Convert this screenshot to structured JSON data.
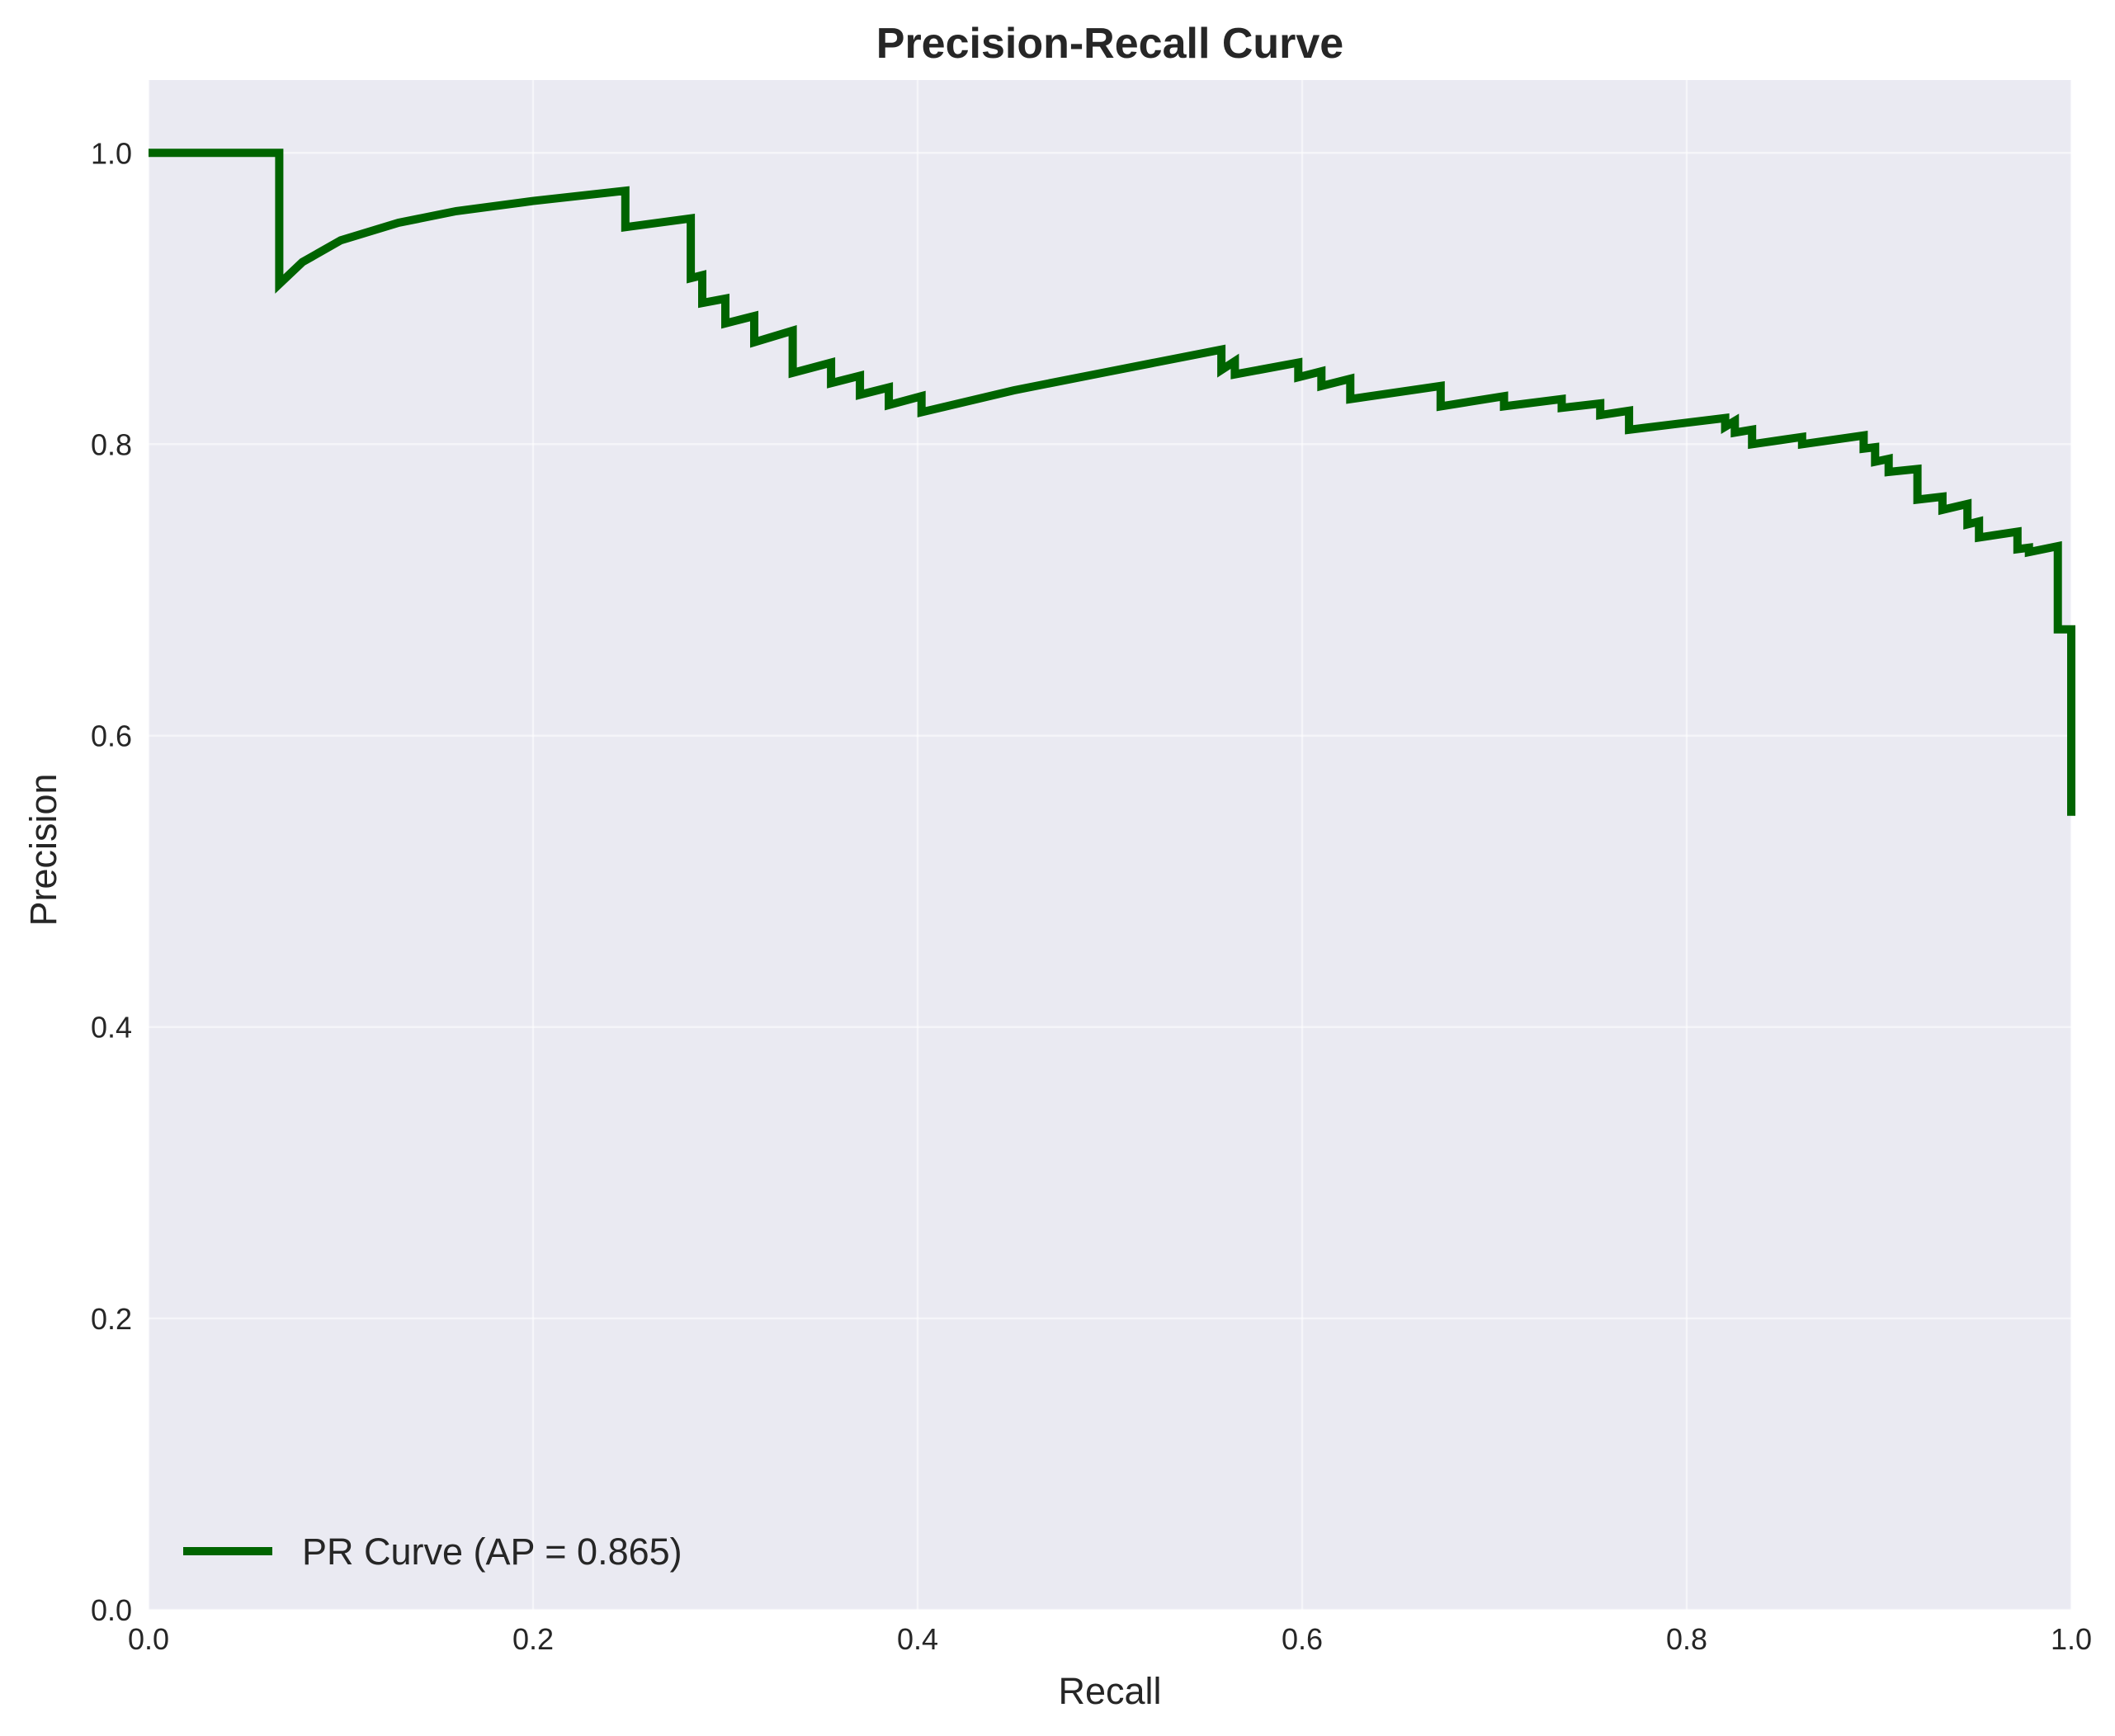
{
  "chart_data": {
    "type": "line",
    "title": "Precision-Recall Curve",
    "xlabel": "Recall",
    "ylabel": "Precision",
    "xlim": [
      0.0,
      1.0
    ],
    "ylim": [
      0.0,
      1.05
    ],
    "xticks": [
      "0.0",
      "0.2",
      "0.4",
      "0.6",
      "0.8",
      "1.0"
    ],
    "yticks": [
      "0.0",
      "0.2",
      "0.4",
      "0.6",
      "0.8",
      "1.0"
    ],
    "grid": true,
    "legend_position": "lower-left",
    "series": [
      {
        "name": "PR Curve (AP = 0.865)",
        "color": "#006400",
        "x": [
          0.0,
          0.068,
          0.068,
          0.08,
          0.1,
          0.13,
          0.16,
          0.2,
          0.248,
          0.248,
          0.282,
          0.282,
          0.288,
          0.288,
          0.3,
          0.3,
          0.315,
          0.315,
          0.335,
          0.335,
          0.355,
          0.355,
          0.37,
          0.37,
          0.385,
          0.385,
          0.402,
          0.402,
          0.45,
          0.5,
          0.558,
          0.558,
          0.565,
          0.565,
          0.598,
          0.598,
          0.61,
          0.61,
          0.625,
          0.625,
          0.672,
          0.672,
          0.705,
          0.705,
          0.735,
          0.735,
          0.755,
          0.755,
          0.77,
          0.77,
          0.82,
          0.82,
          0.825,
          0.825,
          0.834,
          0.834,
          0.86,
          0.86,
          0.892,
          0.892,
          0.898,
          0.898,
          0.905,
          0.905,
          0.92,
          0.92,
          0.933,
          0.933,
          0.946,
          0.946,
          0.952,
          0.952,
          0.972,
          0.972,
          0.978,
          0.978,
          0.993,
          0.993,
          1.0,
          1.0
        ],
        "y": [
          1.0,
          1.0,
          0.91,
          0.925,
          0.94,
          0.952,
          0.96,
          0.967,
          0.974,
          0.949,
          0.955,
          0.914,
          0.916,
          0.897,
          0.9,
          0.883,
          0.888,
          0.87,
          0.878,
          0.849,
          0.856,
          0.842,
          0.847,
          0.834,
          0.839,
          0.827,
          0.833,
          0.822,
          0.837,
          0.85,
          0.865,
          0.851,
          0.857,
          0.848,
          0.856,
          0.846,
          0.85,
          0.84,
          0.845,
          0.831,
          0.84,
          0.826,
          0.833,
          0.826,
          0.831,
          0.825,
          0.828,
          0.82,
          0.823,
          0.81,
          0.818,
          0.812,
          0.816,
          0.808,
          0.81,
          0.8,
          0.805,
          0.8,
          0.806,
          0.797,
          0.798,
          0.788,
          0.79,
          0.781,
          0.783,
          0.762,
          0.764,
          0.755,
          0.759,
          0.745,
          0.747,
          0.736,
          0.74,
          0.728,
          0.729,
          0.726,
          0.73,
          0.673,
          0.673,
          0.545
        ]
      }
    ]
  }
}
